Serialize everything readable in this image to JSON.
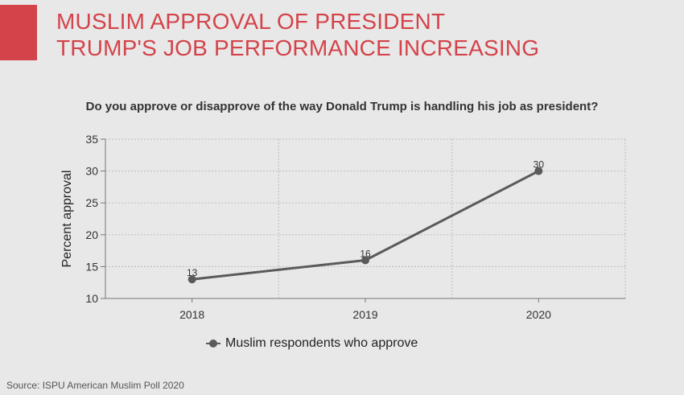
{
  "header": {
    "title_line1": "MUSLIM APPROVAL OF PRESIDENT",
    "title_line2": "TRUMP'S JOB PERFORMANCE INCREASING"
  },
  "question": "Do you approve or disapprove of the way Donald Trump is handling his job as president?",
  "source": "Source: ISPU American Muslim Poll 2020",
  "colors": {
    "accent": "#d4434a",
    "line": "#5a5a5a",
    "grid": "#bdbdbd",
    "background": "#e8e8e8"
  },
  "chart_data": {
    "type": "line",
    "title": "Do you approve or disapprove of the way Donald Trump is handling his job as president?",
    "xlabel": "",
    "ylabel": "Percent approval",
    "categories": [
      "2018",
      "2019",
      "2020"
    ],
    "series": [
      {
        "name": "Muslim respondents who approve",
        "values": [
          13,
          16,
          30
        ]
      }
    ],
    "ylim": [
      10,
      35
    ],
    "yticks": [
      10,
      15,
      20,
      25,
      30,
      35
    ],
    "grid": true,
    "legend_position": "bottom"
  }
}
